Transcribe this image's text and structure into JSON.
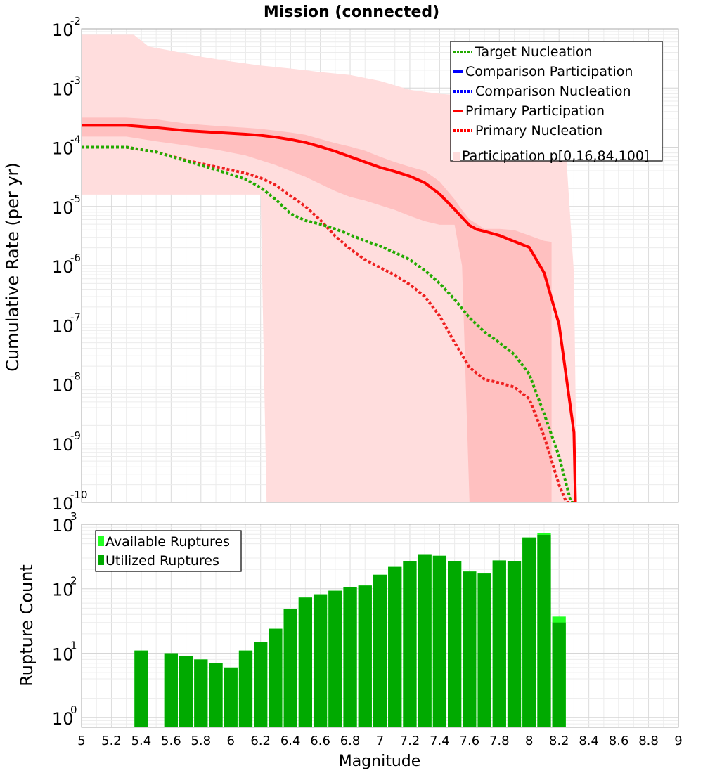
{
  "chart_data": [
    {
      "type": "line",
      "title": "Mission (connected)",
      "xlabel": "",
      "ylabel": "Cumulative Rate (per yr)",
      "xlim": [
        5,
        9
      ],
      "ylim_log10": [
        -10,
        -2
      ],
      "y_tick_exponents": [
        "-2",
        "-3",
        "-4",
        "-5",
        "-6",
        "-7",
        "-8",
        "-9",
        "-10"
      ],
      "y_tick_base": "10",
      "grid": true,
      "legend_position": "top-right",
      "legend": [
        {
          "label": "Target Nucleation",
          "style": "dotted",
          "color": "#22aa00"
        },
        {
          "label": "Comparison Participation",
          "style": "solid",
          "color": "#0000ff"
        },
        {
          "label": "Comparison Nucleation",
          "style": "dotted",
          "color": "#0000ff"
        },
        {
          "label": "Primary Participation",
          "style": "solid",
          "color": "#ff0000"
        },
        {
          "label": "Primary Nucleation",
          "style": "dotted",
          "color": "#ff0000"
        },
        {
          "label": "Participation p[0,16,84,100]",
          "style": "band",
          "color": "#ffdddd"
        }
      ],
      "series": [
        {
          "name": "Primary Participation",
          "color": "#ff0000",
          "style": "solid",
          "x": [
            5.0,
            5.3,
            5.5,
            5.7,
            5.9,
            6.1,
            6.2,
            6.3,
            6.4,
            6.5,
            6.6,
            6.7,
            6.8,
            6.9,
            7.0,
            7.1,
            7.2,
            7.3,
            7.4,
            7.5,
            7.6,
            7.65,
            7.7,
            7.8,
            7.9,
            8.0,
            8.1,
            8.2,
            8.3,
            8.31
          ],
          "log10_values": [
            -3.63,
            -3.63,
            -3.67,
            -3.72,
            -3.75,
            -3.78,
            -3.8,
            -3.83,
            -3.87,
            -3.92,
            -3.99,
            -4.07,
            -4.16,
            -4.25,
            -4.34,
            -4.41,
            -4.49,
            -4.6,
            -4.79,
            -5.05,
            -5.32,
            -5.39,
            -5.42,
            -5.49,
            -5.59,
            -5.69,
            -6.12,
            -6.99,
            -8.82,
            -10.0
          ]
        },
        {
          "name": "Primary Nucleation",
          "color": "#ee2020",
          "style": "dotted",
          "x": [
            5.0,
            5.3,
            5.5,
            5.7,
            5.9,
            6.1,
            6.2,
            6.3,
            6.4,
            6.5,
            6.6,
            6.7,
            6.8,
            6.9,
            7.0,
            7.1,
            7.2,
            7.3,
            7.4,
            7.5,
            7.6,
            7.7,
            7.8,
            7.9,
            8.0,
            8.1,
            8.2,
            8.25,
            8.3
          ],
          "log10_values": [
            -4.0,
            -4.0,
            -4.08,
            -4.22,
            -4.33,
            -4.44,
            -4.52,
            -4.64,
            -4.82,
            -5.0,
            -5.23,
            -5.5,
            -5.72,
            -5.9,
            -6.03,
            -6.16,
            -6.32,
            -6.52,
            -6.85,
            -7.3,
            -7.72,
            -7.92,
            -7.98,
            -8.05,
            -8.25,
            -8.88,
            -9.7,
            -10.0,
            -10.0
          ]
        },
        {
          "name": "Target Nucleation",
          "color": "#22aa00",
          "style": "dotted",
          "x": [
            5.0,
            5.3,
            5.5,
            5.7,
            5.9,
            6.1,
            6.2,
            6.3,
            6.4,
            6.5,
            6.6,
            6.7,
            6.8,
            6.9,
            7.0,
            7.1,
            7.2,
            7.3,
            7.4,
            7.5,
            7.6,
            7.7,
            7.8,
            7.9,
            8.0,
            8.1,
            8.2,
            8.28,
            8.3
          ],
          "log10_values": [
            -4.0,
            -4.0,
            -4.08,
            -4.23,
            -4.38,
            -4.54,
            -4.68,
            -4.88,
            -5.12,
            -5.24,
            -5.3,
            -5.38,
            -5.48,
            -5.58,
            -5.67,
            -5.78,
            -5.9,
            -6.08,
            -6.3,
            -6.57,
            -6.88,
            -7.12,
            -7.3,
            -7.5,
            -7.83,
            -8.5,
            -9.22,
            -10.0,
            -10.0
          ]
        }
      ],
      "bands": [
        {
          "name": "Participation p[0,100]",
          "color": "#ffdddd",
          "x": [
            5.0,
            5.1,
            5.2,
            5.35,
            5.45,
            5.6,
            5.8,
            6.0,
            6.2,
            6.4,
            6.6,
            6.8,
            7.0,
            7.2,
            7.4,
            7.6,
            7.8,
            7.9,
            8.0,
            8.1,
            8.2,
            8.25,
            8.3,
            8.32,
            8.34
          ],
          "upper_log10": [
            -2.1,
            -2.1,
            -2.1,
            -2.1,
            -2.3,
            -2.37,
            -2.47,
            -2.55,
            -2.62,
            -2.67,
            -2.73,
            -2.78,
            -2.88,
            -3.03,
            -3.1,
            -3.13,
            -3.16,
            -3.18,
            -3.22,
            -3.31,
            -3.62,
            -4.21,
            -6.15,
            -10.0,
            -10.0
          ],
          "lower_log10": [
            -4.8,
            -4.8,
            -4.8,
            -4.8,
            -4.8,
            -4.8,
            -4.8,
            -4.8,
            -4.8,
            -10.0,
            -10.0,
            -10.0,
            -10.0,
            -10.0,
            -10.0,
            -10.0,
            -10.0,
            -10.0,
            -10.0,
            -10.0,
            -10.0,
            -10.0,
            -10.0,
            -10.0,
            -10.0
          ],
          "lower_steps": [
            {
              "x": 6.2,
              "from": -4.8,
              "to": -4.8
            },
            {
              "x": 6.24,
              "from": -4.8,
              "to": -10.0
            }
          ]
        },
        {
          "name": "Participation p[16,84]",
          "color": "#ffc0c0",
          "x": [
            5.0,
            5.3,
            5.5,
            5.7,
            5.9,
            6.1,
            6.2,
            6.3,
            6.4,
            6.5,
            6.6,
            6.7,
            6.8,
            6.9,
            7.0,
            7.1,
            7.2,
            7.3,
            7.4,
            7.5,
            7.55,
            7.6,
            7.7,
            7.8,
            7.9,
            8.0,
            8.1,
            8.15
          ],
          "upper_log10": [
            -3.5,
            -3.5,
            -3.53,
            -3.6,
            -3.64,
            -3.67,
            -3.69,
            -3.72,
            -3.75,
            -3.79,
            -3.86,
            -3.93,
            -3.99,
            -4.06,
            -4.16,
            -4.25,
            -4.33,
            -4.4,
            -4.58,
            -4.88,
            -5.06,
            -5.22,
            -5.38,
            -5.38,
            -5.4,
            -5.49,
            -5.58,
            -5.6
          ],
          "lower_log10": [
            -3.82,
            -3.82,
            -3.9,
            -3.97,
            -4.04,
            -4.14,
            -4.22,
            -4.3,
            -4.4,
            -4.5,
            -4.62,
            -4.74,
            -4.84,
            -4.9,
            -4.98,
            -5.06,
            -5.16,
            -5.25,
            -5.31,
            -5.31,
            -6.0,
            -10.0,
            -10.0,
            -10.0,
            -10.0,
            -10.0,
            -10.0,
            -10.0
          ]
        }
      ]
    },
    {
      "type": "bar",
      "title": "",
      "xlabel": "Magnitude",
      "ylabel": "Rupture Count",
      "xlim": [
        5,
        9
      ],
      "ylim_log10": [
        -0.15,
        3
      ],
      "y_tick_exponents": [
        "0",
        "1",
        "2",
        "3"
      ],
      "y_tick_base": "10",
      "x_ticks": [
        "5",
        "5.2",
        "5.4",
        "5.6",
        "5.8",
        "6",
        "6.2",
        "6.4",
        "6.6",
        "6.8",
        "7",
        "7.2",
        "7.4",
        "7.6",
        "7.8",
        "8",
        "8.2",
        "8.4",
        "8.6",
        "8.8",
        "9"
      ],
      "bin_width": 0.1,
      "legend_position": "top-left",
      "legend": [
        {
          "label": "Available Ruptures",
          "color": "#22ff22"
        },
        {
          "label": "Utilized Ruptures",
          "color": "#00aa00"
        }
      ],
      "bins": [
        5.4,
        5.6,
        5.7,
        5.8,
        5.9,
        6.0,
        6.1,
        6.2,
        6.3,
        6.4,
        6.5,
        6.6,
        6.7,
        6.8,
        6.9,
        7.0,
        7.1,
        7.2,
        7.3,
        7.4,
        7.5,
        7.6,
        7.7,
        7.8,
        7.9,
        8.0,
        8.1,
        8.2
      ],
      "series": [
        {
          "name": "Available Ruptures",
          "color": "#22ff22",
          "values": [
            11,
            10,
            9,
            8,
            7,
            6,
            11,
            15,
            24,
            48,
            73,
            82,
            93,
            105,
            112,
            165,
            218,
            265,
            335,
            325,
            265,
            185,
            172,
            275,
            270,
            625,
            735,
            37
          ]
        },
        {
          "name": "Utilized Ruptures",
          "color": "#00aa00",
          "values": [
            11,
            10,
            9,
            8,
            7,
            6,
            11,
            15,
            24,
            48,
            73,
            82,
            93,
            105,
            112,
            165,
            218,
            265,
            335,
            325,
            265,
            185,
            172,
            275,
            270,
            625,
            680,
            30
          ]
        }
      ]
    }
  ]
}
